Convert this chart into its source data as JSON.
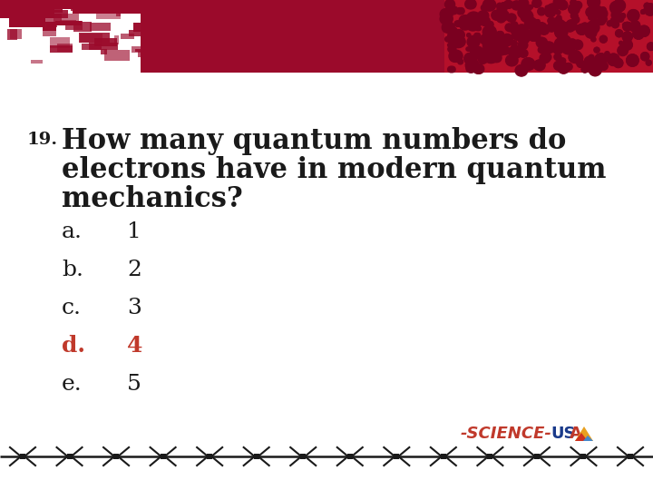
{
  "bg_color": "#ffffff",
  "header_color": "#9b0a2b",
  "question_number": "19.",
  "question_text_line1": "How many quantum numbers do",
  "question_text_line2": "electrons have in modern quantum",
  "question_text_line3": "mechanics?",
  "options": [
    {
      "letter": "a.",
      "text": "1",
      "bold": false,
      "color": "#1a1a1a"
    },
    {
      "letter": "b.",
      "text": "2",
      "bold": false,
      "color": "#1a1a1a"
    },
    {
      "letter": "c.",
      "text": "3",
      "bold": false,
      "color": "#1a1a1a"
    },
    {
      "letter": "d.",
      "text": "4",
      "bold": true,
      "color": "#c0392b"
    },
    {
      "letter": "e.",
      "text": "5",
      "bold": false,
      "color": "#1a1a1a"
    }
  ],
  "science_label": "-SCIENCE-",
  "science_color": "#c0392b",
  "text_color": "#1a1a1a",
  "wire_color": "#1a1a1a",
  "fig_width": 7.2,
  "fig_height": 5.4,
  "dpi": 100
}
